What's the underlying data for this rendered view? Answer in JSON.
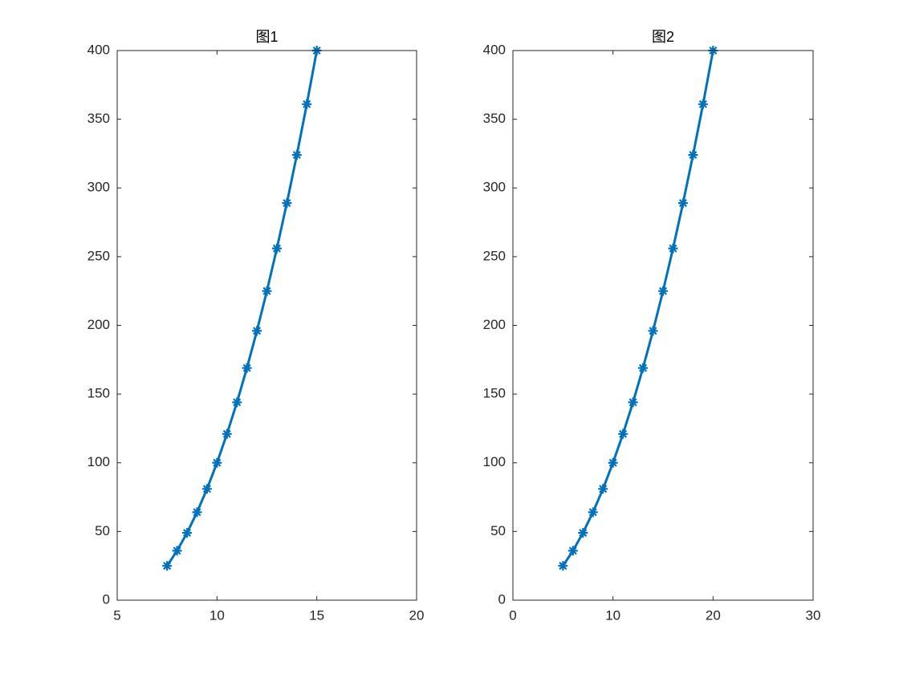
{
  "chart_data": [
    {
      "type": "line",
      "title": "图1",
      "x": [
        7.5,
        8,
        8.5,
        9,
        9.5,
        10,
        10.5,
        11,
        11.5,
        12,
        12.5,
        13,
        13.5,
        14,
        14.5,
        15
      ],
      "series": [
        {
          "color": "#0072bd",
          "marker": "*",
          "values": [
            25,
            36,
            49,
            64,
            81,
            100,
            121,
            144,
            169,
            196,
            225,
            256,
            289,
            324,
            361,
            400
          ]
        }
      ],
      "xlim": [
        5,
        20
      ],
      "xticks": [
        5,
        10,
        15,
        20
      ],
      "ylim": [
        0,
        400
      ],
      "yticks": [
        0,
        50,
        100,
        150,
        200,
        250,
        300,
        350,
        400
      ]
    },
    {
      "type": "line",
      "title": "图2",
      "x": [
        5,
        6,
        7,
        8,
        9,
        10,
        11,
        12,
        13,
        14,
        15,
        16,
        17,
        18,
        19,
        20
      ],
      "series": [
        {
          "color": "#0072bd",
          "marker": "*",
          "values": [
            25,
            36,
            49,
            64,
            81,
            100,
            121,
            144,
            169,
            196,
            225,
            256,
            289,
            324,
            361,
            400
          ]
        }
      ],
      "xlim": [
        0,
        30
      ],
      "xticks": [
        0,
        10,
        20,
        30
      ],
      "ylim": [
        0,
        400
      ],
      "yticks": [
        0,
        50,
        100,
        150,
        200,
        250,
        300,
        350,
        400
      ]
    }
  ]
}
